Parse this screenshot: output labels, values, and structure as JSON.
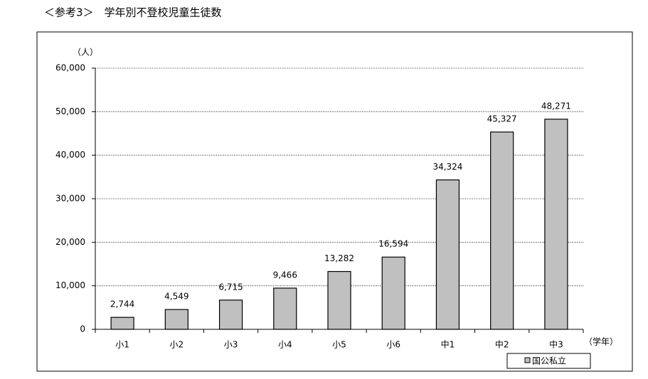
{
  "chart_data": {
    "type": "bar",
    "title": "＜参考3＞　学年別不登校児童生徒数",
    "y_unit": "（人）",
    "x_unit": "（学年）",
    "categories": [
      "小1",
      "小2",
      "小3",
      "小4",
      "小5",
      "小6",
      "中1",
      "中2",
      "中3"
    ],
    "series": [
      {
        "name": "国公私立",
        "color": "#c0c0c0",
        "values": [
          2744,
          4549,
          6715,
          9466,
          13282,
          16594,
          34324,
          45327,
          48271
        ],
        "value_labels": [
          "2,744",
          "4,549",
          "6,715",
          "9,466",
          "13,282",
          "16,594",
          "34,324",
          "45,327",
          "48,271"
        ]
      }
    ],
    "ylim": [
      0,
      60000
    ],
    "yticks": [
      0,
      {
        "value": 10000,
        "label": "10,000"
      },
      {
        "value": 20000,
        "label": "20,000"
      },
      {
        "value": 30000,
        "label": "30,000"
      },
      {
        "value": 40000,
        "label": "40,000"
      },
      {
        "value": 50000,
        "label": "50,000"
      },
      {
        "value": 60000,
        "label": "60,000"
      }
    ],
    "grid": true
  }
}
